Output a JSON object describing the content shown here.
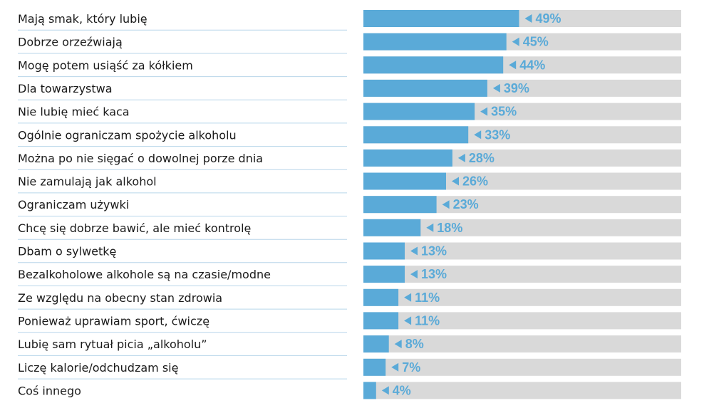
{
  "chart_data": {
    "type": "bar",
    "orientation": "horizontal",
    "categories": [
      "Mają smak, który lubię",
      "Dobrze orzeźwiają",
      "Mogę potem usiąść za kółkiem",
      "Dla towarzystwa",
      "Nie lubię mieć kaca",
      "Ogólnie ograniczam spożycie alkoholu",
      "Można po nie sięgać o dowolnej porze dnia",
      "Nie zamulają jak alkohol",
      "Ograniczam używki",
      "Chcę się dobrze bawić, ale mieć kontrolę",
      "Dbam o sylwetkę",
      "Bezalkoholowe alkohole są na czasie/modne",
      "Ze względu na obecny stan zdrowia",
      "Ponieważ uprawiam sport, ćwiczę",
      "Lubię sam rytuał picia „alkoholu”",
      "Liczę kalorie/odchudzam się",
      "Coś innego"
    ],
    "values": [
      49,
      45,
      44,
      39,
      35,
      33,
      28,
      26,
      23,
      18,
      13,
      13,
      11,
      11,
      8,
      7,
      4
    ],
    "value_labels": [
      "49%",
      "45%",
      "44%",
      "39%",
      "35%",
      "33%",
      "28%",
      "26%",
      "23%",
      "18%",
      "13%",
      "13%",
      "11%",
      "11%",
      "8%",
      "7%",
      "4%"
    ],
    "xlim": [
      0,
      100
    ],
    "title": "",
    "xlabel": "",
    "ylabel": "",
    "grid": false,
    "colors": {
      "bar": "#5aaad8",
      "track": "#d9d9d9",
      "value_label": "#5aaad8",
      "separator": "#b8d6ea",
      "text": "#1a1a1a"
    }
  }
}
